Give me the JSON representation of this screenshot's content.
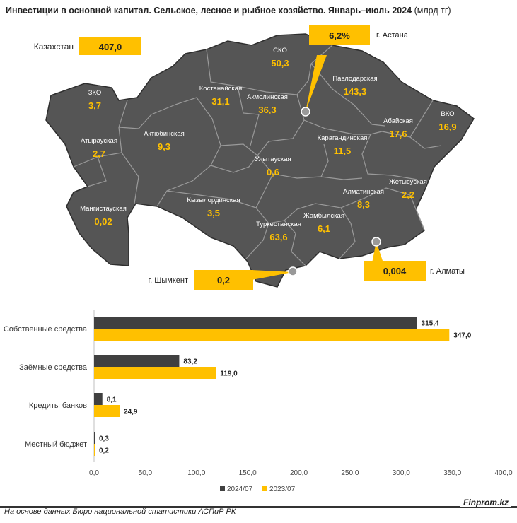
{
  "title": {
    "bold": "Инвестиции в основной капитал. Сельское, лесное и рыбное хозяйство. Январь–июль 2024",
    "unit": "(млрд тг)"
  },
  "colors": {
    "accent": "#FFC000",
    "dark": "#404040",
    "map_fill": "#555555",
    "border": "#9a9a9a"
  },
  "map": {
    "total": {
      "label": "Казахстан",
      "value": "407,0"
    },
    "regions": [
      {
        "name": "ЗКО",
        "value": "3,7"
      },
      {
        "name": "Атырауская",
        "value": "2,7"
      },
      {
        "name": "Мангистауская",
        "value": "0,02"
      },
      {
        "name": "Актюбинская",
        "value": "9,3"
      },
      {
        "name": "Костанайская",
        "value": "31,1"
      },
      {
        "name": "СКО",
        "value": "50,3"
      },
      {
        "name": "Акмолинская",
        "value": "36,3"
      },
      {
        "name": "Павлодарская",
        "value": "143,3"
      },
      {
        "name": "Абайская",
        "value": "17,6"
      },
      {
        "name": "ВКО",
        "value": "16,9"
      },
      {
        "name": "Карагандинская",
        "value": "11,5"
      },
      {
        "name": "Улытауская",
        "value": "0,6"
      },
      {
        "name": "Кызылординская",
        "value": "3,5"
      },
      {
        "name": "Туркестанская",
        "value": "63,6"
      },
      {
        "name": "Жамбылская",
        "value": "6,1"
      },
      {
        "name": "Алматинская",
        "value": "8,3"
      },
      {
        "name": "Жетысуская",
        "value": "2,2"
      }
    ],
    "cities": [
      {
        "name": "г. Астана",
        "value": "6,2%"
      },
      {
        "name": "г. Шымкент",
        "value": "0,2"
      },
      {
        "name": "г. Алматы",
        "value": "0,004"
      }
    ]
  },
  "chart_data": {
    "type": "bar",
    "orientation": "horizontal",
    "categories": [
      "Собственные средства",
      "Заёмные средства",
      "Кредиты банков",
      "Местный бюджет"
    ],
    "series": [
      {
        "name": "2024/07",
        "values": [
          315.4,
          83.2,
          8.1,
          0.3
        ],
        "labels": [
          "315,4",
          "83,2",
          "8,1",
          "0,3"
        ],
        "color": "#404040"
      },
      {
        "name": "2023/07",
        "values": [
          347.0,
          119.0,
          24.9,
          0.2
        ],
        "labels": [
          "347,0",
          "119,0",
          "24,9",
          "0,2"
        ],
        "color": "#FFC000"
      }
    ],
    "xlim": [
      0,
      400
    ],
    "xticks": [
      "0,0",
      "50,0",
      "100,0",
      "150,0",
      "200,0",
      "250,0",
      "300,0",
      "350,0",
      "400,0"
    ],
    "legend_position": "bottom",
    "grid": false
  },
  "footer": {
    "source": "На основе данных Бюро национальной статистики АСПиР РК",
    "brand": "Finprom.kz"
  }
}
